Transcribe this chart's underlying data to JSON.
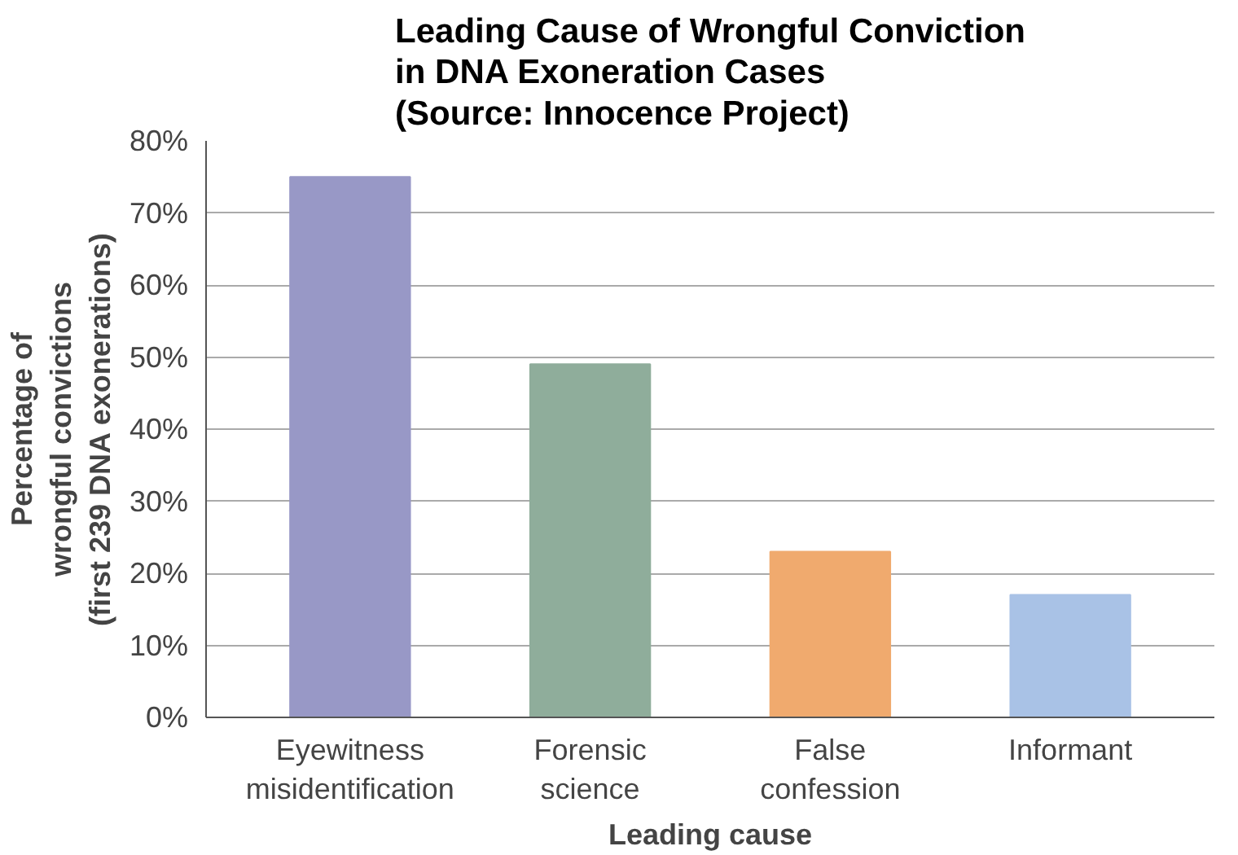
{
  "chart_data": {
    "type": "bar",
    "title": "Leading Cause of Wrongful Conviction\nin DNA Exoneration Cases\n(Source: Innocence Project)",
    "xlabel": "Leading cause",
    "ylabel": "Percentage of\nwrongful convictions\n(first 239 DNA exonerations)",
    "categories": [
      "Eyewitness\nmisidentification",
      "Forensic\nscience",
      "False\nconfession",
      "Informant"
    ],
    "values": [
      75,
      49,
      23,
      17
    ],
    "colors": [
      "#9898c6",
      "#8fad9b",
      "#f0aa6e",
      "#a9c2e6"
    ],
    "ylim": [
      0,
      80
    ],
    "yticks": [
      {
        "value": 0,
        "label": "0%"
      },
      {
        "value": 10,
        "label": "10%"
      },
      {
        "value": 20,
        "label": "20%"
      },
      {
        "value": 30,
        "label": "30%"
      },
      {
        "value": 40,
        "label": "40%"
      },
      {
        "value": 50,
        "label": "50%"
      },
      {
        "value": 60,
        "label": "60%"
      },
      {
        "value": 70,
        "label": "70%"
      },
      {
        "value": 80,
        "label": "80%"
      }
    ],
    "grid": "y"
  }
}
